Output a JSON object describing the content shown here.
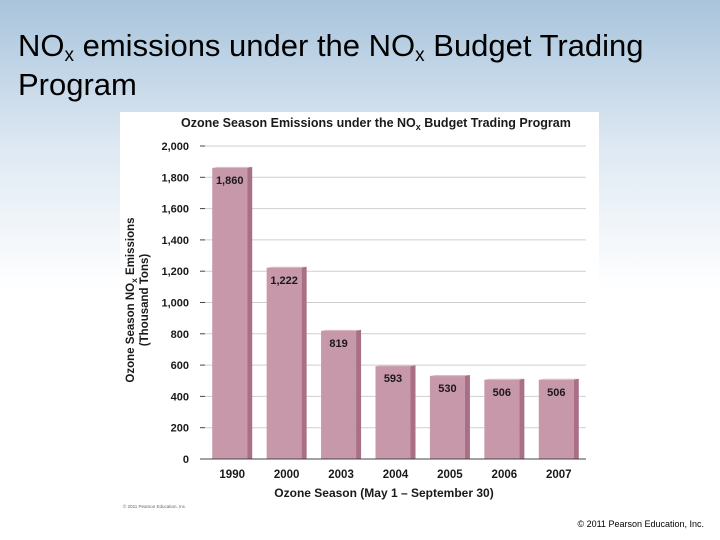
{
  "slide": {
    "title_part1": "NO",
    "title_sub1": "x",
    "title_part2": " emissions under the NO",
    "title_sub2": "x",
    "title_part3": " Budget Trading Program",
    "copyright": "© 2011 Pearson Education, Inc."
  },
  "chart_data": {
    "type": "bar",
    "title_part1": "Ozone Season Emissions under the NO",
    "title_sub": "x",
    "title_part2": " Budget Trading Program",
    "categories": [
      "1990",
      "2000",
      "2003",
      "2004",
      "2005",
      "2006",
      "2007"
    ],
    "values": [
      1860,
      1222,
      819,
      593,
      530,
      506,
      506
    ],
    "value_labels": [
      "1,860",
      "1,222",
      "819",
      "593",
      "530",
      "506",
      "506"
    ],
    "ylim": [
      0,
      2000
    ],
    "yticks": [
      0,
      200,
      400,
      600,
      800,
      1000,
      1200,
      1400,
      1600,
      1800,
      2000
    ],
    "ytick_labels": [
      "0",
      "200",
      "400",
      "600",
      "800",
      "1,000",
      "1,200",
      "1,400",
      "1,600",
      "1,800",
      "2,000"
    ],
    "ylabel_line1_part1": "Ozone Season NO",
    "ylabel_line1_sub": "x",
    "ylabel_line1_part2": " Emissions",
    "ylabel_line2": "(Thousand Tons)",
    "xlabel": "Ozone Season (May 1 – September 30)",
    "credit": "© 2011 Pearson Education, Inc.",
    "grid": true,
    "bar_color": "#c797aa",
    "bar_side_color": "#a86f86",
    "bar_top_color": "#ddb8c6",
    "grid_color": "#cfcfcf"
  }
}
